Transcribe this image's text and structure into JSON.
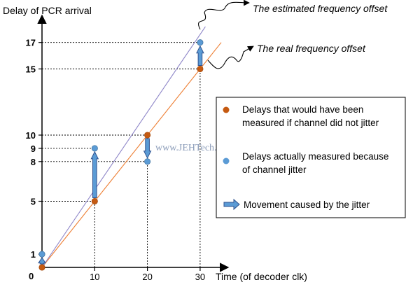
{
  "chart_data": {
    "type": "scatter",
    "ylabel": "Delay of PCR arrival",
    "xlabel": "Time (of decoder clk)",
    "x_ticks": [
      0,
      10,
      20,
      30
    ],
    "y_ticks": [
      1,
      5,
      8,
      9,
      10,
      15,
      17
    ],
    "xlim": [
      0,
      35
    ],
    "ylim": [
      0,
      19
    ],
    "series": [
      {
        "name": "Delays that would have been measured if channel did not jitter",
        "color": "#c55a11",
        "points": [
          [
            0,
            0
          ],
          [
            10,
            5
          ],
          [
            20,
            10
          ],
          [
            30,
            15
          ]
        ]
      },
      {
        "name": "Delays actually measured because of channel jitter",
        "color": "#5b9bd5",
        "points": [
          [
            0,
            1
          ],
          [
            10,
            9
          ],
          [
            20,
            8
          ],
          [
            30,
            17
          ]
        ]
      }
    ],
    "lines": [
      {
        "name": "The real frequency offset",
        "color": "#ed7d31",
        "from": [
          0,
          0
        ],
        "to": [
          34,
          17
        ]
      },
      {
        "name": "The estimated frequency offset",
        "color": "#8e86c8",
        "from": [
          0,
          0
        ],
        "to": [
          31,
          18.2
        ]
      }
    ],
    "movement_arrows": [
      {
        "x": 0,
        "from": 0,
        "to": 1
      },
      {
        "x": 10,
        "from": 5,
        "to": 9
      },
      {
        "x": 20,
        "from": 10,
        "to": 8
      },
      {
        "x": 30,
        "from": 15,
        "to": 17
      }
    ],
    "annotations": {
      "estimated": "The estimated frequency offset",
      "real": "The real frequency offset"
    },
    "legend": {
      "position": "right",
      "movement_label": "Movement caused by the jitter"
    },
    "watermark": "www.JEHTech.com",
    "origin_label": "0"
  }
}
